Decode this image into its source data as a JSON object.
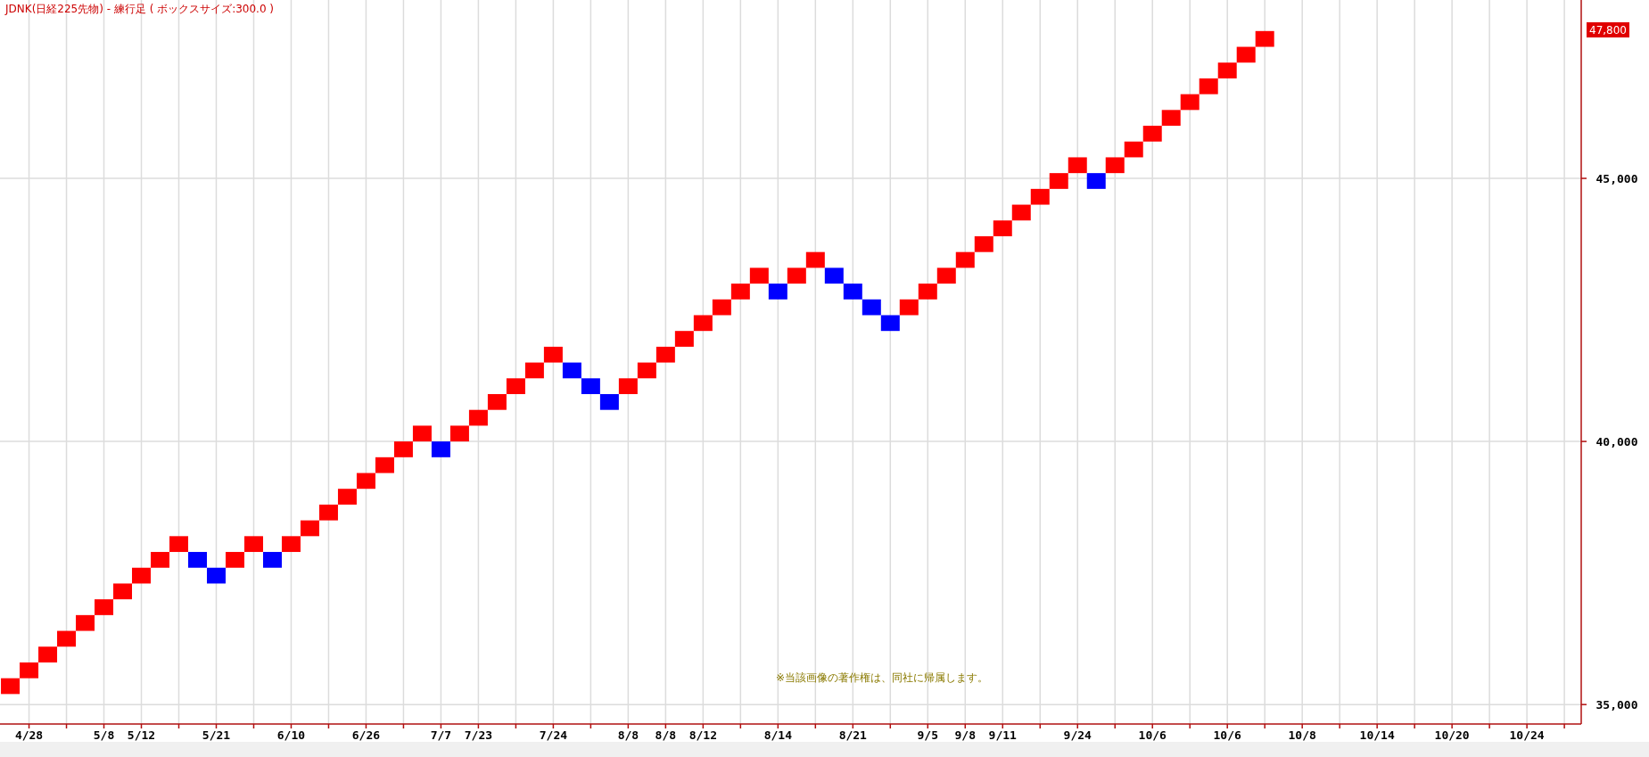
{
  "chart_data": {
    "type": "bar",
    "title": "JDNK(日経225先物) - 練行足 ( ボックスサイズ:300.0 )",
    "annotations": [
      "※当該画像の著作権は、同社に帰属します。",
      "47,800"
    ],
    "categories": [
      null,
      "4/28",
      null,
      null,
      null,
      "5/8",
      null,
      "5/12",
      null,
      null,
      null,
      "5/21",
      null,
      null,
      null,
      "6/10",
      null,
      null,
      null,
      "6/26",
      null,
      null,
      null,
      "7/7",
      null,
      "7/23",
      null,
      null,
      null,
      "7/24",
      null,
      null,
      null,
      "8/8",
      null,
      "8/8",
      null,
      "8/12",
      null,
      null,
      null,
      "8/14",
      null,
      null,
      null,
      "8/21",
      null,
      null,
      null,
      "9/5",
      null,
      "9/8",
      null,
      "9/11",
      null,
      null,
      null,
      "9/24",
      null,
      null,
      null,
      "10/6",
      null,
      null,
      null,
      "10/6",
      null,
      null,
      null,
      "10/8",
      null,
      null,
      null,
      "10/14",
      null,
      null,
      null,
      "10/20",
      null,
      null,
      null,
      "10/24",
      null,
      null
    ],
    "base": [
      35200,
      35500,
      35800,
      36100,
      36400,
      36700,
      37000,
      37300,
      37600,
      37900,
      37600,
      37300,
      37600,
      37900,
      37600,
      37900,
      38200,
      38500,
      38800,
      39100,
      39400,
      39700,
      40000,
      39700,
      40000,
      40300,
      40600,
      40900,
      41200,
      41500,
      41200,
      40900,
      40600,
      40900,
      41200,
      41500,
      41800,
      42100,
      42400,
      42700,
      43000,
      42700,
      43000,
      43300,
      43000,
      42700,
      42400,
      42100,
      42400,
      42700,
      43000,
      43300,
      43600,
      43900,
      44200,
      44500,
      44800,
      45100,
      44800,
      45100,
      45400,
      45700,
      46000,
      46300,
      46600,
      46900,
      47200,
      47500,
      null,
      null,
      null,
      null,
      null,
      null,
      null,
      null,
      null,
      null,
      null,
      null,
      null,
      null,
      null,
      null
    ],
    "values": [
      300,
      300,
      300,
      300,
      300,
      300,
      300,
      300,
      300,
      300,
      300,
      300,
      300,
      300,
      300,
      300,
      300,
      300,
      300,
      300,
      300,
      300,
      300,
      300,
      300,
      300,
      300,
      300,
      300,
      300,
      300,
      300,
      300,
      300,
      300,
      300,
      300,
      300,
      300,
      300,
      300,
      300,
      300,
      300,
      300,
      300,
      300,
      300,
      300,
      300,
      300,
      300,
      300,
      300,
      300,
      300,
      300,
      300,
      300,
      300,
      300,
      300,
      300,
      300,
      300,
      300,
      300,
      300,
      null,
      null,
      null,
      null,
      null,
      null,
      null,
      null,
      null,
      null,
      null,
      null,
      null,
      null,
      null,
      null
    ],
    "colors": [
      "#ff0000",
      "#ff0000",
      "#ff0000",
      "#ff0000",
      "#ff0000",
      "#ff0000",
      "#ff0000",
      "#ff0000",
      "#ff0000",
      "#ff0000",
      "#0000ff",
      "#0000ff",
      "#ff0000",
      "#ff0000",
      "#0000ff",
      "#ff0000",
      "#ff0000",
      "#ff0000",
      "#ff0000",
      "#ff0000",
      "#ff0000",
      "#ff0000",
      "#ff0000",
      "#0000ff",
      "#ff0000",
      "#ff0000",
      "#ff0000",
      "#ff0000",
      "#ff0000",
      "#ff0000",
      "#0000ff",
      "#0000ff",
      "#0000ff",
      "#ff0000",
      "#ff0000",
      "#ff0000",
      "#ff0000",
      "#ff0000",
      "#ff0000",
      "#ff0000",
      "#ff0000",
      "#0000ff",
      "#ff0000",
      "#ff0000",
      "#0000ff",
      "#0000ff",
      "#0000ff",
      "#0000ff",
      "#ff0000",
      "#ff0000",
      "#ff0000",
      "#ff0000",
      "#ff0000",
      "#ff0000",
      "#ff0000",
      "#ff0000",
      "#ff0000",
      "#ff0000",
      "#0000ff",
      "#ff0000",
      "#ff0000",
      "#ff0000",
      "#ff0000",
      "#ff0000",
      "#ff0000",
      "#ff0000",
      "#ff0000",
      "#ff0000",
      null,
      null,
      null,
      null,
      null,
      null,
      null,
      null,
      null,
      null,
      null,
      null,
      null,
      null,
      null,
      null
    ],
    "ylim": [
      34630,
      48390
    ],
    "yticks": [
      {
        "value": 35000,
        "label": "35,000"
      },
      {
        "value": 40000,
        "label": "40,000"
      },
      {
        "value": 45000,
        "label": "45,000"
      }
    ],
    "grid": true
  }
}
